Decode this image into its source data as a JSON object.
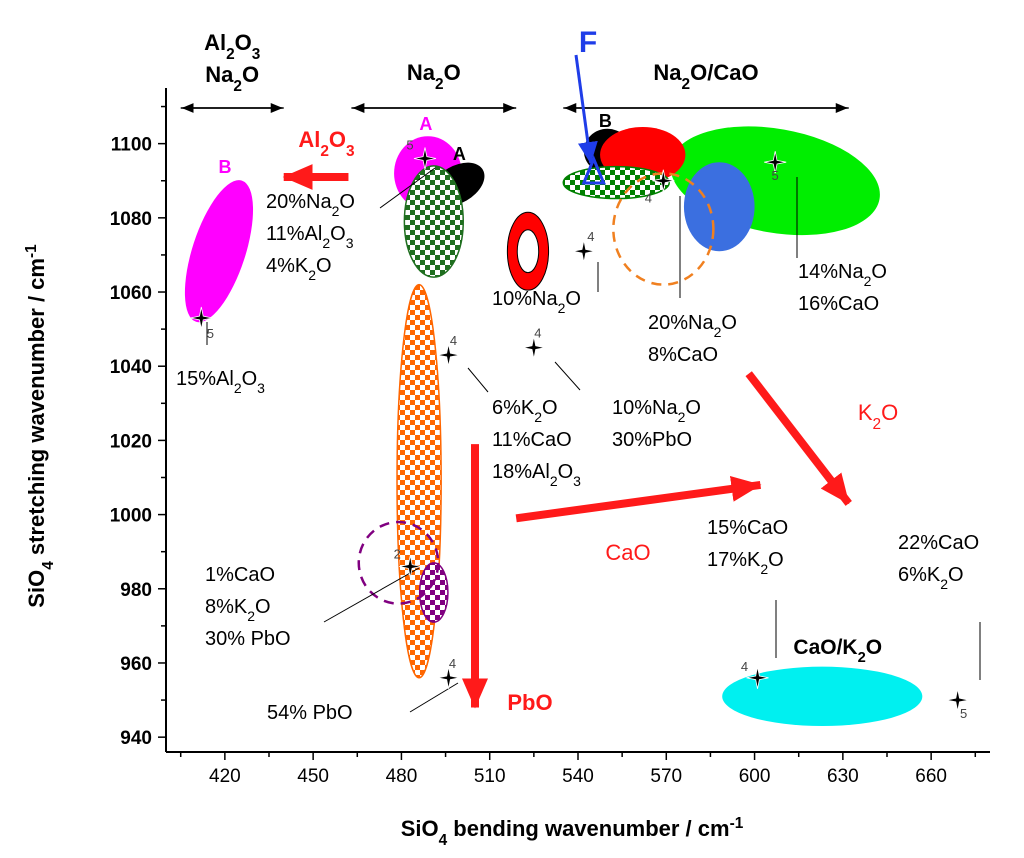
{
  "chart_data": {
    "type": "scatter",
    "title": "",
    "xlabel": "SiO₄ bending wavenumber / cm⁻¹",
    "ylabel": "SiO₄ stretching wavenumber / cm⁻¹",
    "xlim": [
      400,
      680
    ],
    "ylim": [
      936,
      1115
    ],
    "x_ticks": [
      "420",
      "450",
      "480",
      "510",
      "540",
      "570",
      "600",
      "630",
      "660"
    ],
    "y_ticks": [
      "940",
      "960",
      "980",
      "1000",
      "1020",
      "1040",
      "1060",
      "1080",
      "1100"
    ],
    "group_headers": [
      {
        "lines": [
          "Al2O3",
          "Na2O"
        ],
        "range": [
          405,
          440
        ]
      },
      {
        "lines": [
          "Na2O"
        ],
        "range": [
          463,
          519
        ]
      },
      {
        "lines": [
          "Na2O/CaO"
        ],
        "range": [
          535,
          632
        ]
      },
      {
        "lines": [
          "CaO/K2O"
        ],
        "at": [
          620,
          964
        ]
      }
    ],
    "marker_label": "F",
    "regions": [
      {
        "label": "B",
        "color": "#ff00ff",
        "cx": 418,
        "cy": 1071,
        "rx": 9,
        "ry": 20,
        "rot": 18,
        "fill": "solid"
      },
      {
        "label": "A",
        "color": "#ff00ff",
        "cx": 489,
        "cy": 1092,
        "rx": 11.5,
        "ry": 10,
        "rot": 0,
        "fill": "solid"
      },
      {
        "label": "A",
        "color": "#000000",
        "cx": 499,
        "cy": 1089,
        "rx": 10,
        "ry": 5,
        "rot": -30,
        "fill": "solid"
      },
      {
        "label": "",
        "color": "#1f6e1f",
        "cx": 491,
        "cy": 1079,
        "rx": 10,
        "ry": 15,
        "rot": 0,
        "fill": "checker"
      },
      {
        "label": "",
        "color": "#ff6600",
        "cx": 486,
        "cy": 1009,
        "rx": 7.5,
        "ry": 53,
        "rot": 0,
        "fill": "checker"
      },
      {
        "label": "",
        "color": "#800080",
        "cx": 491,
        "cy": 979,
        "rx": 4.8,
        "ry": 8,
        "rot": 0,
        "fill": "checker"
      },
      {
        "label": "",
        "color": "#ff0000",
        "cx": 523,
        "cy": 1071,
        "rx": 7,
        "ry": 10.5,
        "rot": 0,
        "fill": "ring"
      },
      {
        "label": "B",
        "color": "#000000",
        "cx": 550,
        "cy": 1098,
        "rx": 8,
        "ry": 6,
        "rot": 0,
        "fill": "solid"
      },
      {
        "label": "",
        "color": "#00ee00",
        "cx": 607,
        "cy": 1090,
        "rx": 36,
        "ry": 14,
        "rot": 10,
        "fill": "solid"
      },
      {
        "label": "",
        "color": "#ff0000",
        "cx": 562,
        "cy": 1097,
        "rx": 14.5,
        "ry": 7.5,
        "rot": 0,
        "fill": "solid"
      },
      {
        "label": "",
        "color": "#3b6fe0",
        "cx": 588,
        "cy": 1083,
        "rx": 12,
        "ry": 12,
        "rot": 0,
        "fill": "solid"
      },
      {
        "label": "",
        "color": "#008000",
        "cx": 553,
        "cy": 1089.5,
        "rx": 18,
        "ry": 4.3,
        "rot": 0,
        "fill": "checker"
      },
      {
        "label": "",
        "color": "#00f0f0",
        "cx": 623,
        "cy": 951,
        "rx": 34,
        "ry": 8,
        "rot": 0,
        "fill": "solid"
      }
    ],
    "dashed_regions": [
      {
        "color": "#800080",
        "cx": 479,
        "cy": 987,
        "rx": 13.5,
        "ry": 11
      },
      {
        "color": "#f08020",
        "cx": 569,
        "cy": 1077,
        "rx": 17,
        "ry": 15
      }
    ],
    "points": [
      {
        "x": 412,
        "y": 1053,
        "n": "5",
        "label": [
          "15%Al2O3"
        ]
      },
      {
        "x": 488,
        "y": 1096,
        "n": "5",
        "label": [
          "20%Na2O",
          "11%Al2O3",
          "4%K2O"
        ]
      },
      {
        "x": 496,
        "y": 1043,
        "n": "4",
        "label": [
          "6%K2O",
          "11%CaO",
          "18%Al2O3"
        ]
      },
      {
        "x": 483,
        "y": 986,
        "n": "2",
        "label": [
          "1%CaO",
          "8%K2O",
          "30% PbO"
        ]
      },
      {
        "x": 496,
        "y": 956,
        "n": "4",
        "label": [
          "54% PbO"
        ]
      },
      {
        "x": 542,
        "y": 1071,
        "n": "4",
        "label": [
          "10%Na2O"
        ]
      },
      {
        "x": 525,
        "y": 1045,
        "n": "4",
        "label": [
          "10%Na2O",
          "30%PbO"
        ]
      },
      {
        "x": 569,
        "y": 1090,
        "n": "4",
        "label": [
          "20%Na2O",
          "8%CaO"
        ]
      },
      {
        "x": 607,
        "y": 1095,
        "n": "5",
        "label": [
          "14%Na2O",
          "16%CaO"
        ]
      },
      {
        "x": 601,
        "y": 956,
        "n": "4",
        "label": [
          "15%CaO",
          "17%K2O"
        ]
      },
      {
        "x": 669,
        "y": 950,
        "n": "5",
        "label": [
          "22%CaO",
          "6%K2O"
        ]
      }
    ],
    "trend_arrows": [
      {
        "label": "Al2O3",
        "from": [
          462,
          1091
        ],
        "to": [
          440,
          1091
        ]
      },
      {
        "label": "CaO",
        "from": [
          519,
          999
        ],
        "to": [
          602,
          1008
        ]
      },
      {
        "label": "PbO",
        "from": [
          505,
          1019
        ],
        "to": [
          505,
          948
        ]
      },
      {
        "label": "K2O",
        "from": [
          598,
          1038
        ],
        "to": [
          632,
          1003
        ]
      }
    ]
  }
}
